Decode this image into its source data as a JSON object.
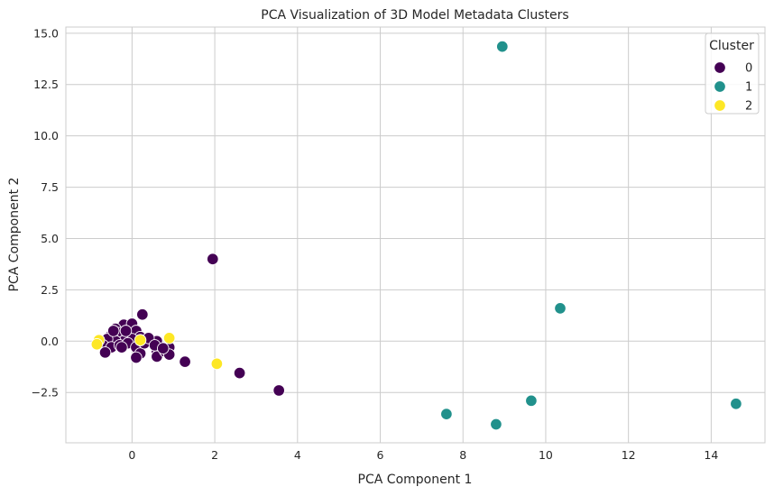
{
  "chart_data": {
    "type": "scatter",
    "title": "PCA Visualization of 3D Model Metadata Clusters",
    "xlabel": "PCA Component 1",
    "ylabel": "PCA Component 2",
    "xlim": [
      -1.6,
      15.3
    ],
    "ylim": [
      -4.95,
      15.3
    ],
    "xticks": [
      0,
      2,
      4,
      6,
      8,
      10,
      12,
      14
    ],
    "yticks": [
      -2.5,
      0.0,
      2.5,
      5.0,
      7.5,
      10.0,
      12.5,
      15.0
    ],
    "ytick_labels": [
      "−2.5",
      "0.0",
      "2.5",
      "5.0",
      "7.5",
      "10.0",
      "12.5",
      "15.0"
    ],
    "grid": true,
    "legend": {
      "title": "Cluster",
      "placement": "top-right"
    },
    "series": [
      {
        "name": "0",
        "color": "#440154",
        "points": [
          [
            1.95,
            4.0
          ],
          [
            0.25,
            1.3
          ],
          [
            3.55,
            -2.4
          ],
          [
            2.6,
            -1.55
          ],
          [
            1.28,
            -1.0
          ],
          [
            -0.2,
            0.8
          ],
          [
            0.0,
            0.85
          ],
          [
            -0.4,
            0.6
          ],
          [
            -0.5,
            0.3
          ],
          [
            -0.3,
            0.4
          ],
          [
            -0.1,
            0.3
          ],
          [
            0.1,
            0.5
          ],
          [
            0.2,
            0.2
          ],
          [
            0.0,
            0.1
          ],
          [
            -0.2,
            0.0
          ],
          [
            -0.4,
            0.0
          ],
          [
            -0.6,
            0.1
          ],
          [
            -0.7,
            -0.2
          ],
          [
            -0.5,
            -0.3
          ],
          [
            -0.3,
            -0.2
          ],
          [
            -0.1,
            -0.1
          ],
          [
            0.1,
            -0.3
          ],
          [
            0.2,
            -0.6
          ],
          [
            0.1,
            -0.8
          ],
          [
            0.6,
            -0.5
          ],
          [
            0.6,
            -0.75
          ],
          [
            0.8,
            -0.5
          ],
          [
            0.9,
            -0.3
          ],
          [
            0.9,
            -0.65
          ],
          [
            0.6,
            0.0
          ],
          [
            0.3,
            -0.1
          ],
          [
            -0.65,
            -0.55
          ],
          [
            -0.15,
            0.5
          ],
          [
            0.4,
            0.15
          ],
          [
            -0.25,
            -0.3
          ],
          [
            0.55,
            -0.2
          ],
          [
            -0.45,
            0.5
          ],
          [
            0.75,
            -0.35
          ]
        ]
      },
      {
        "name": "1",
        "color": "#21918c",
        "points": [
          [
            8.95,
            14.35
          ],
          [
            10.35,
            1.6
          ],
          [
            9.65,
            -2.9
          ],
          [
            7.6,
            -3.55
          ],
          [
            8.8,
            -4.05
          ],
          [
            14.6,
            -3.05
          ]
        ]
      },
      {
        "name": "2",
        "color": "#fde725",
        "points": [
          [
            0.9,
            0.15
          ],
          [
            2.05,
            -1.1
          ],
          [
            -0.8,
            0.05
          ],
          [
            0.2,
            0.05
          ],
          [
            -0.85,
            -0.15
          ]
        ]
      }
    ]
  }
}
